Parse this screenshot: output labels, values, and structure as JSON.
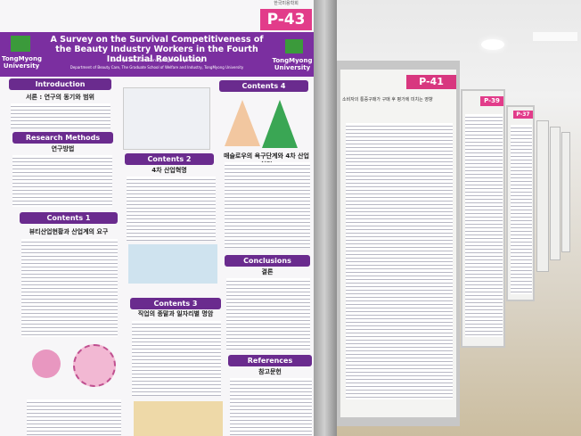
{
  "main_poster": {
    "number": "P-43",
    "society": "한국미용학회",
    "title": "A Survey on the Survival Competitiveness of the Beauty Industry Workers in the Fourth Industrial Revolution",
    "university_left": "TongMyong University",
    "university_right": "TongMyong University",
    "authors": "Lee Hye Ran, Sim Sun Kyung, Kim Hye Young",
    "affiliation": "Department of Beauty Care, The Graduate School of Welfare and Industry, TongMyong University",
    "sections": {
      "introduction": "Introduction",
      "intro_sub": "서론 : 연구의 동기와 범위",
      "research_methods": "Research Methods",
      "methods_sub": "연구방법",
      "contents1": "Contents 1",
      "contents1_sub": "뷰티산업현황과 산업계의 요구",
      "contents2": "Contents 2",
      "contents2_sub": "4차 산업혁명",
      "contents3": "Contents 3",
      "contents3_sub": "직업의 종말과 일자리별 명암",
      "contents4": "Contents 4",
      "contents4_sub": "매슬로우의 욕구단계와 4차 산업혁명",
      "conclusions": "Conclusions",
      "conclusions_sub": "결론",
      "references": "References",
      "references_sub": "참고문헌"
    }
  },
  "other_posters": [
    {
      "number": "P-41",
      "title": "소비자의 통증구매가 구매 후 평가에 미치는 영향"
    },
    {
      "number": "P-39"
    },
    {
      "number": "P-37"
    }
  ]
}
